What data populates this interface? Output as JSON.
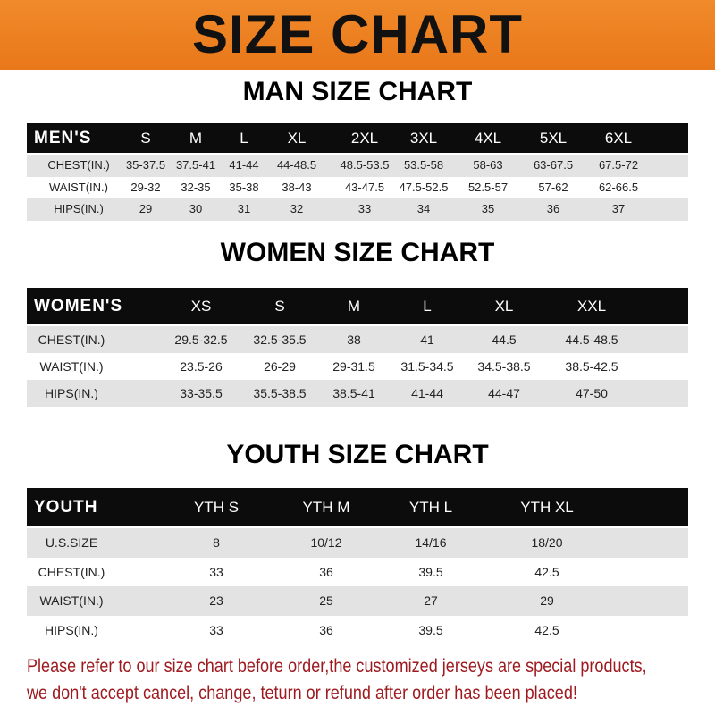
{
  "title": "SIZE CHART",
  "tables": [
    {
      "title": "MAN SIZE CHART",
      "label": "MEN'S",
      "sizes": [
        "S",
        "M",
        "L",
        "XL",
        "2XL",
        "3XL",
        "4XL",
        "5XL",
        "6XL"
      ],
      "rows": [
        {
          "label": "CHEST(IN.)",
          "values": [
            "35-37.5",
            "37.5-41",
            "41-44",
            "44-48.5",
            "48.5-53.5",
            "53.5-58",
            "58-63",
            "63-67.5",
            "67.5-72"
          ]
        },
        {
          "label": "WAIST(IN.)",
          "values": [
            "29-32",
            "32-35",
            "35-38",
            "38-43",
            "43-47.5",
            "47.5-52.5",
            "52.5-57",
            "57-62",
            "62-66.5"
          ]
        },
        {
          "label": "HIPS(IN.)",
          "values": [
            "29",
            "30",
            "31",
            "32",
            "33",
            "34",
            "35",
            "36",
            "37"
          ]
        }
      ]
    },
    {
      "title": "WOMEN SIZE CHART",
      "label": "WOMEN'S",
      "sizes": [
        "XS",
        "S",
        "M",
        "L",
        "XL",
        "XXL"
      ],
      "rows": [
        {
          "label": "CHEST(IN.)",
          "values": [
            "29.5-32.5",
            "32.5-35.5",
            "38",
            "41",
            "44.5",
            "44.5-48.5"
          ]
        },
        {
          "label": "WAIST(IN.)",
          "values": [
            "23.5-26",
            "26-29",
            "29-31.5",
            "31.5-34.5",
            "34.5-38.5",
            "38.5-42.5"
          ]
        },
        {
          "label": "HIPS(IN.)",
          "values": [
            "33-35.5",
            "35.5-38.5",
            "38.5-41",
            "41-44",
            "44-47",
            "47-50"
          ]
        }
      ]
    },
    {
      "title": "YOUTH SIZE CHART",
      "label": "YOUTH",
      "sizes": [
        "YTH S",
        "YTH M",
        "YTH L",
        "YTH XL"
      ],
      "rows": [
        {
          "label": "U.S.SIZE",
          "values": [
            "8",
            "10/12",
            "14/16",
            "18/20"
          ]
        },
        {
          "label": "CHEST(IN.)",
          "values": [
            "33",
            "36",
            "39.5",
            "42.5"
          ]
        },
        {
          "label": "WAIST(IN.)",
          "values": [
            "23",
            "25",
            "27",
            "29"
          ]
        },
        {
          "label": "HIPS(IN.)",
          "values": [
            "33",
            "36",
            "39.5",
            "42.5"
          ]
        }
      ]
    }
  ],
  "notice": [
    "Please refer to our size chart before order,the customized jerseys are special products,",
    "we don't accept cancel, change, teturn or refund after order has been placed!"
  ],
  "colors": {
    "banner": "#ee8424",
    "header_row": "#0c0c0c",
    "stripe": "#e3e3e3",
    "notice": "#9e1a1f"
  }
}
